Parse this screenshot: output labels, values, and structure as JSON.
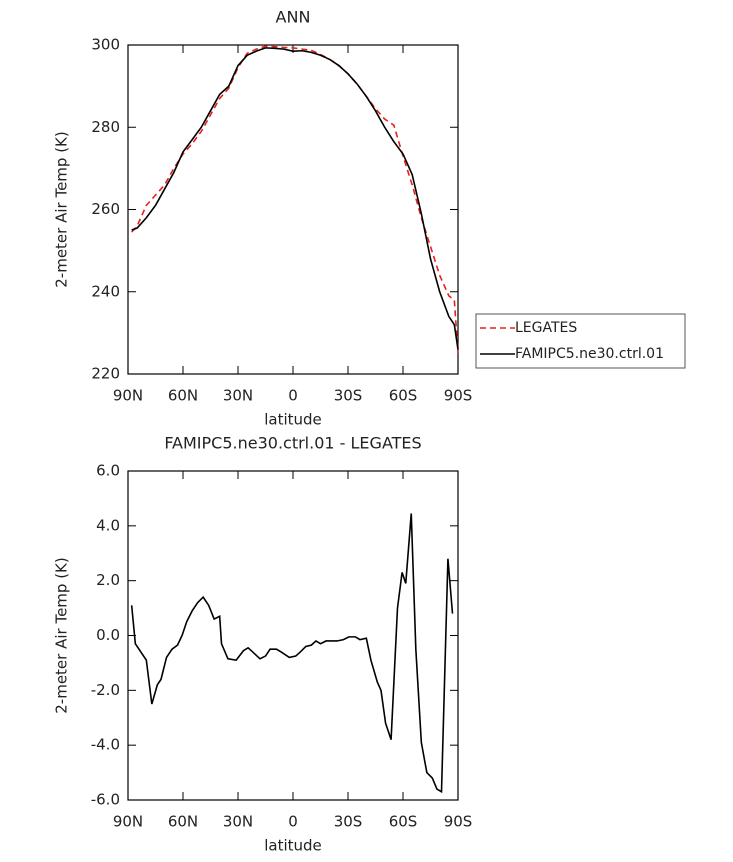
{
  "chart_data": [
    {
      "type": "line",
      "title": "ANN",
      "xlabel": "latitude",
      "ylabel": "2-meter Air Temp (K)",
      "x": [
        88,
        85,
        80,
        75,
        70,
        65,
        60,
        55,
        50,
        45,
        40,
        35,
        30,
        25,
        20,
        15,
        10,
        5,
        0,
        -5,
        -10,
        -15,
        -20,
        -25,
        -30,
        -35,
        -40,
        -45,
        -50,
        -55,
        -60,
        -65,
        -70,
        -75,
        -80,
        -85,
        -88,
        -90
      ],
      "series": [
        {
          "name": "LEGATES",
          "color": "#e8201a",
          "dashed": true,
          "values": [
            254.5,
            256,
            261,
            263.5,
            266,
            270,
            273.5,
            276,
            279,
            283,
            287,
            289.5,
            294.5,
            298,
            299,
            299.7,
            299.6,
            299.4,
            299.3,
            299,
            298.7,
            297.7,
            296.5,
            295,
            293,
            290.5,
            287.5,
            284.5,
            282,
            280.5,
            273,
            266,
            258,
            251,
            244,
            239,
            238,
            225
          ]
        },
        {
          "name": "FAMIPC5.ne30.ctrl.01",
          "color": "#000000",
          "dashed": false,
          "values": [
            255,
            255.5,
            258,
            261,
            265,
            269,
            274,
            277,
            280,
            284,
            288,
            290,
            295,
            297.5,
            298.5,
            299.3,
            299.2,
            299,
            298.5,
            298.6,
            298.2,
            297.5,
            296.5,
            295,
            293,
            290.5,
            287.5,
            284,
            280,
            276.5,
            273.5,
            268.5,
            259,
            248,
            240,
            234,
            232,
            226
          ]
        }
      ],
      "xlim": [
        90,
        -90
      ],
      "xticks": [
        {
          "value": 90,
          "label": "90N"
        },
        {
          "value": 60,
          "label": "60N"
        },
        {
          "value": 30,
          "label": "30N"
        },
        0,
        {
          "value": -30,
          "label": "30S"
        },
        {
          "value": -60,
          "label": "60S"
        },
        {
          "value": -90,
          "label": "90S"
        }
      ],
      "ylim": [
        220,
        300
      ],
      "yticks": [
        220,
        240,
        260,
        280,
        300
      ],
      "legend": "right"
    },
    {
      "type": "line",
      "title": "FAMIPC5.ne30.ctrl.01 - LEGATES",
      "xlabel": "latitude",
      "ylabel": "2-meter Air Temp (K)",
      "x": [
        88,
        86,
        80,
        77,
        74,
        72,
        69,
        66,
        63,
        60.5,
        58,
        55,
        52,
        49,
        46,
        43,
        40,
        39,
        35.5,
        31,
        27,
        24.5,
        22,
        18,
        15,
        12.5,
        9,
        6.5,
        2,
        -1.5,
        -4,
        -7,
        -10,
        -12.5,
        -15,
        -18,
        -21,
        -24,
        -27.5,
        -30.5,
        -34,
        -36.5,
        -40,
        -42.5,
        -46,
        -48,
        -50.5,
        -53.5,
        -57,
        -59.5,
        -61.5,
        -64.5,
        -67,
        -70,
        -73,
        -76,
        -78.5,
        -81,
        -84.5,
        -87
      ],
      "values": [
        1.1,
        -0.3,
        -0.9,
        -2.5,
        -1.8,
        -1.6,
        -0.8,
        -0.5,
        -0.35,
        0,
        0.5,
        0.9,
        1.2,
        1.4,
        1.1,
        0.6,
        0.7,
        -0.3,
        -0.85,
        -0.9,
        -0.55,
        -0.45,
        -0.6,
        -0.85,
        -0.75,
        -0.5,
        -0.5,
        -0.6,
        -0.8,
        -0.75,
        -0.6,
        -0.4,
        -0.35,
        -0.2,
        -0.3,
        -0.2,
        -0.2,
        -0.2,
        -0.15,
        -0.05,
        -0.05,
        -0.15,
        -0.1,
        -0.9,
        -1.7,
        -2.0,
        -3.2,
        -3.8,
        1.0,
        2.3,
        1.9,
        4.45,
        -0.5,
        -3.9,
        -5.0,
        -5.2,
        -5.6,
        -5.7,
        2.8,
        0.8
      ],
      "color": "#000000",
      "xlim": [
        90,
        -90
      ],
      "xticks": [
        {
          "value": 90,
          "label": "90N"
        },
        {
          "value": 60,
          "label": "60N"
        },
        {
          "value": 30,
          "label": "30N"
        },
        0,
        {
          "value": -30,
          "label": "30S"
        },
        {
          "value": -60,
          "label": "60S"
        },
        {
          "value": -90,
          "label": "90S"
        }
      ],
      "ylim": [
        -6,
        6
      ],
      "yticks": [
        {
          "value": -6,
          "label": "-6.0"
        },
        {
          "value": -4,
          "label": "-4.0"
        },
        {
          "value": -2,
          "label": "-2.0"
        },
        {
          "value": 0,
          "label": "0.0"
        },
        {
          "value": 2,
          "label": "2.0"
        },
        {
          "value": 4,
          "label": "4.0"
        },
        {
          "value": 6,
          "label": "6.0"
        }
      ]
    }
  ]
}
